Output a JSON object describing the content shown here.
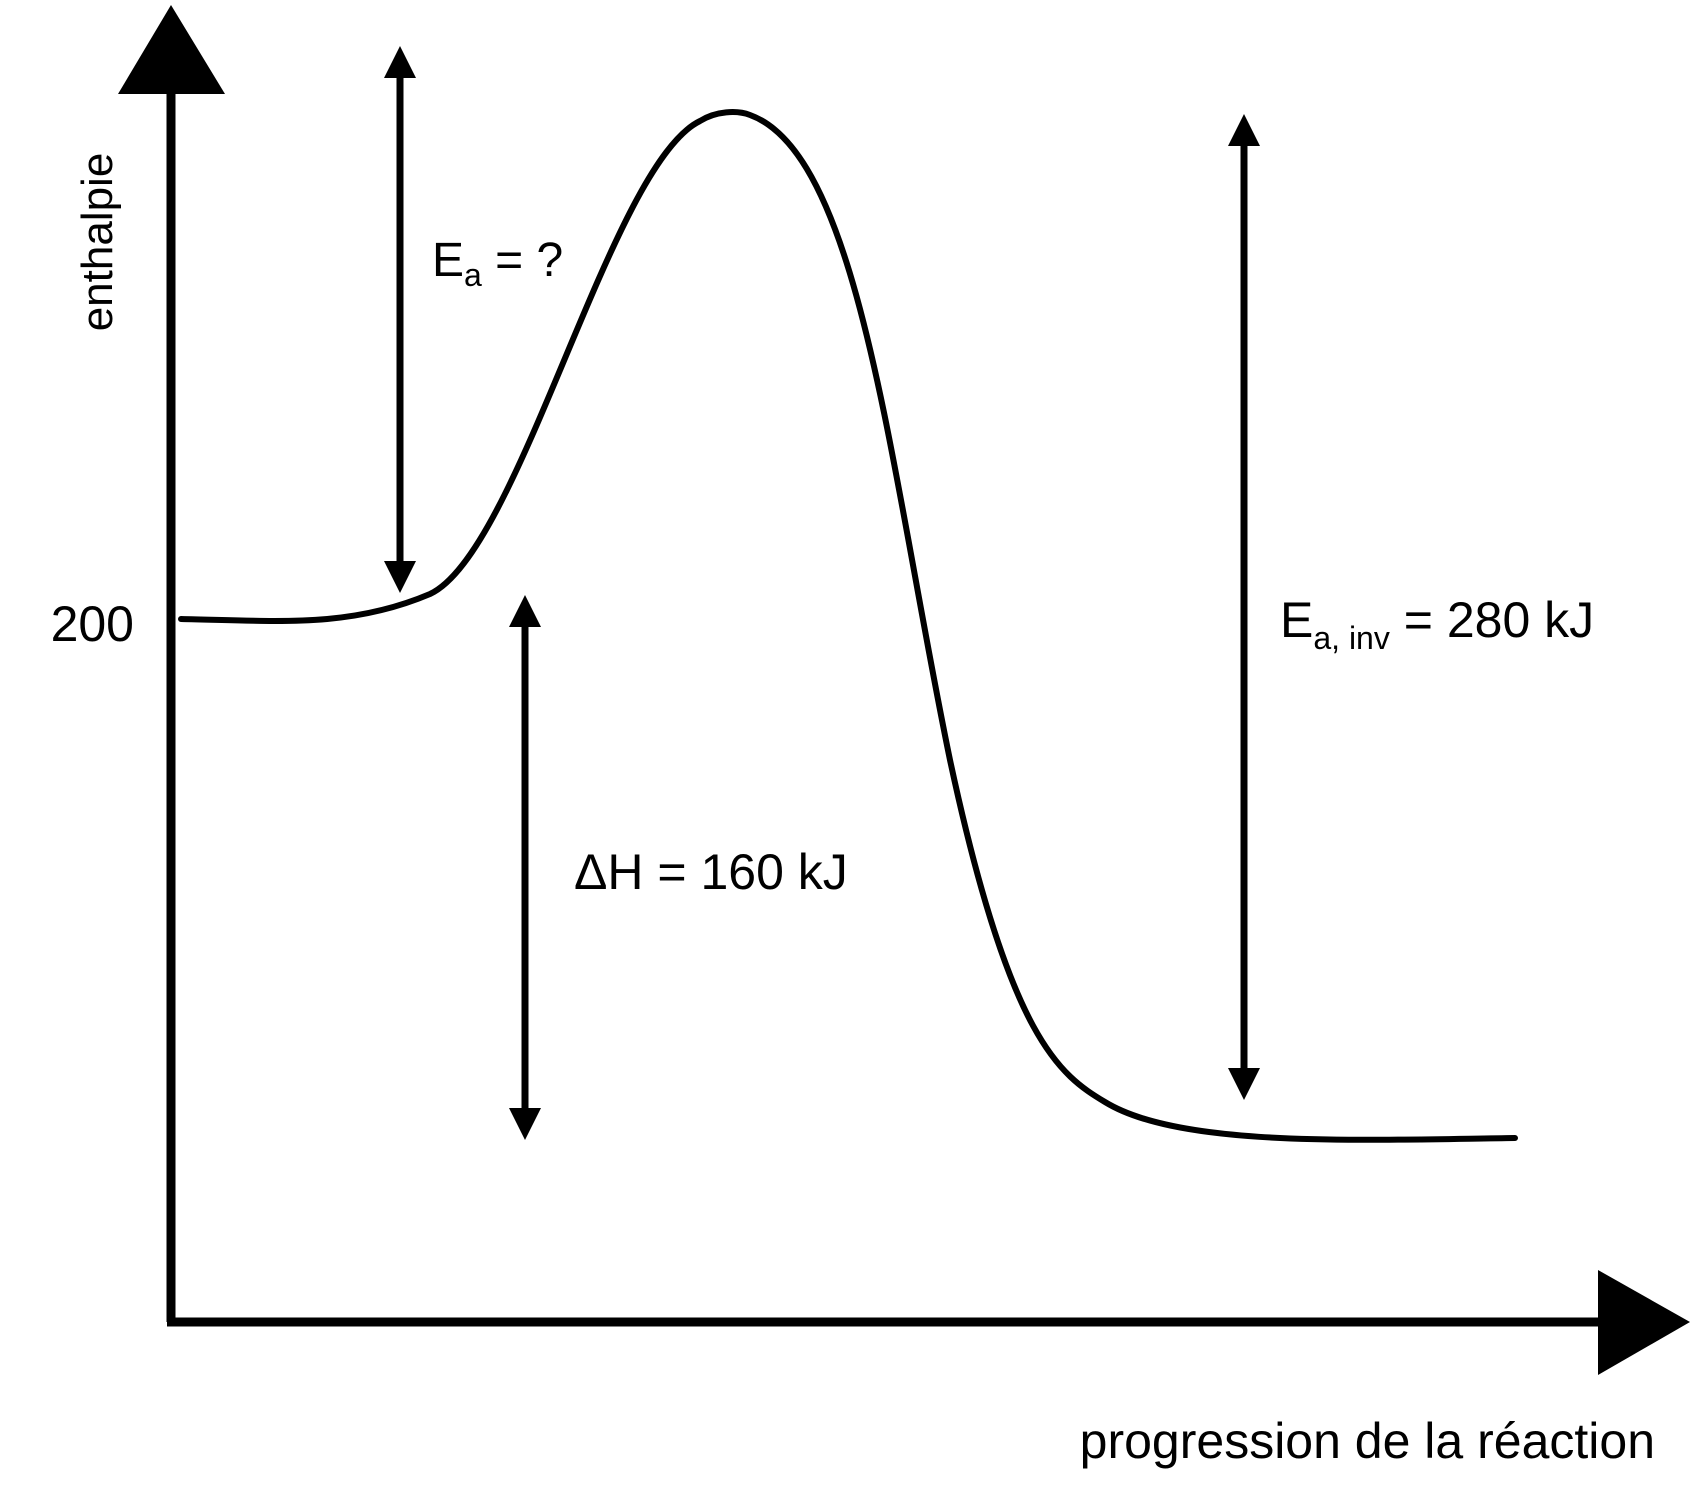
{
  "diagram": {
    "y_axis_label": "enthalpie",
    "x_axis_label": "progression de la réaction",
    "reactant_level_label": "200",
    "activation_energy": {
      "symbol": "E",
      "subscript": "a",
      "value_text": " = ?"
    },
    "reverse_activation_energy": {
      "symbol": "E",
      "subscript": "a, inv",
      "value_text": " = 280 kJ"
    },
    "enthalpy_change": {
      "text": "ΔH = 160 kJ"
    },
    "line_color": "#000000"
  }
}
